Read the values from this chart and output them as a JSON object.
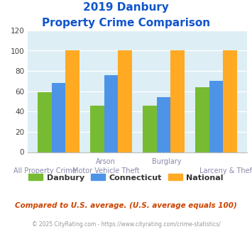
{
  "title_line1": "2019 Danbury",
  "title_line2": "Property Crime Comparison",
  "groups": [
    {
      "danbury": 59,
      "connecticut": 68,
      "national": 100
    },
    {
      "danbury": 46,
      "connecticut": 76,
      "national": 100
    },
    {
      "danbury": 46,
      "connecticut": 54,
      "national": 100
    },
    {
      "danbury": 64,
      "connecticut": 70,
      "national": 100
    }
  ],
  "top_row_labels": [
    "",
    "Arson",
    "Burglary",
    ""
  ],
  "bottom_row_labels": [
    "All Property Crime",
    "Motor Vehicle Theft",
    "",
    "Larceny & Theft"
  ],
  "color_danbury": "#77bb33",
  "color_connecticut": "#4d94e8",
  "color_national": "#ffaa22",
  "ylim": [
    0,
    120
  ],
  "yticks": [
    0,
    20,
    40,
    60,
    80,
    100,
    120
  ],
  "background_color": "#ddeef5",
  "title_color": "#1155cc",
  "footer_text": "Compared to U.S. average. (U.S. average equals 100)",
  "footer_color": "#cc4400",
  "credit_text": "© 2025 CityRating.com - https://www.cityrating.com/crime-statistics/",
  "credit_color": "#999999",
  "legend_labels": [
    "Danbury",
    "Connecticut",
    "National"
  ],
  "label_color": "#8888aa"
}
